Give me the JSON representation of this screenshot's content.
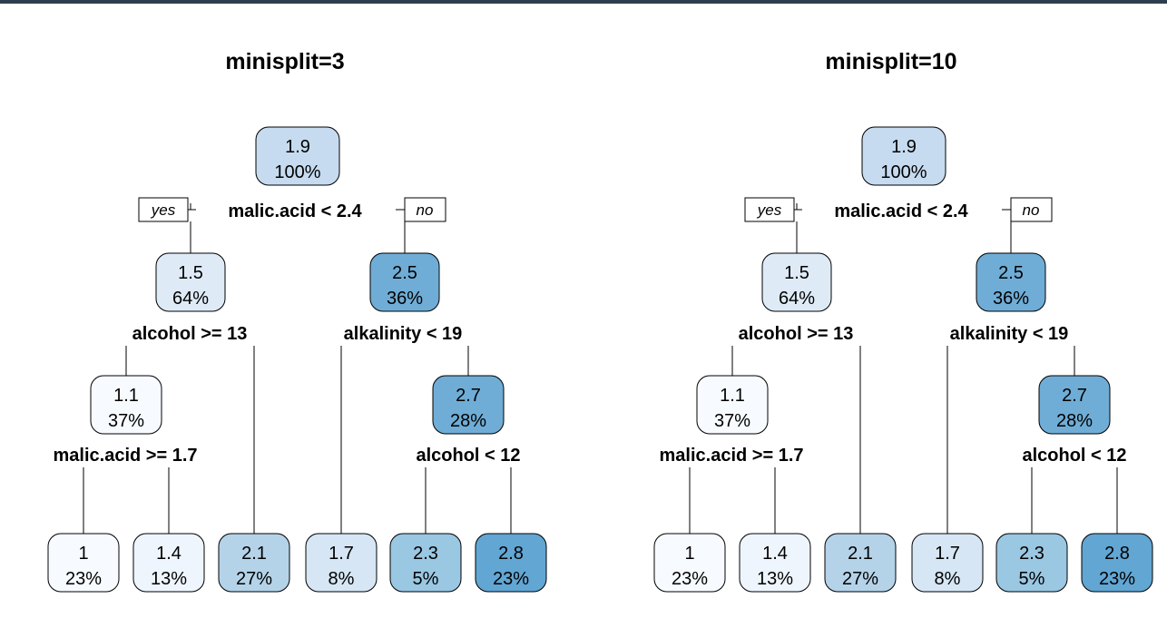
{
  "colors": {
    "frame": "#2f3e4e",
    "edge": "#000000",
    "node_border": "#000000"
  },
  "trees": [
    {
      "title": "minisplit=3",
      "yes_label": "yes",
      "no_label": "no",
      "root": {
        "value": "1.9",
        "pct": "100%",
        "fill": "#c6dbef",
        "split": "malic.acid < 2.4",
        "left": {
          "value": "1.5",
          "pct": "64%",
          "fill": "#deebf7",
          "split": "alcohol >= 13",
          "left": {
            "value": "1.1",
            "pct": "37%",
            "fill": "#f7fbff",
            "split": "malic.acid >= 1.7",
            "left": {
              "value": "1",
              "pct": "23%",
              "fill": "#f7fbff"
            },
            "right": {
              "value": "1.4",
              "pct": "13%",
              "fill": "#eef5fc"
            }
          },
          "right": {
            "value": "2.1",
            "pct": "27%",
            "fill": "#b4d3e9"
          }
        },
        "right": {
          "value": "2.5",
          "pct": "36%",
          "fill": "#6fadd6",
          "split": "alkalinity < 19",
          "left": {
            "value": "1.7",
            "pct": "8%",
            "fill": "#d6e6f4"
          },
          "right": {
            "value": "2.7",
            "pct": "28%",
            "fill": "#6fadd6",
            "split": "alcohol < 12",
            "left": {
              "value": "2.3",
              "pct": "5%",
              "fill": "#9ac7e2"
            },
            "right": {
              "value": "2.8",
              "pct": "23%",
              "fill": "#62a6d3"
            }
          }
        }
      }
    },
    {
      "title": "minisplit=10",
      "yes_label": "yes",
      "no_label": "no",
      "root": {
        "value": "1.9",
        "pct": "100%",
        "fill": "#c6dbef",
        "split": "malic.acid < 2.4",
        "left": {
          "value": "1.5",
          "pct": "64%",
          "fill": "#deebf7",
          "split": "alcohol >= 13",
          "left": {
            "value": "1.1",
            "pct": "37%",
            "fill": "#f7fbff",
            "split": "malic.acid >= 1.7",
            "left": {
              "value": "1",
              "pct": "23%",
              "fill": "#f7fbff"
            },
            "right": {
              "value": "1.4",
              "pct": "13%",
              "fill": "#eef5fc"
            }
          },
          "right": {
            "value": "2.1",
            "pct": "27%",
            "fill": "#b4d3e9"
          }
        },
        "right": {
          "value": "2.5",
          "pct": "36%",
          "fill": "#6fadd6",
          "split": "alkalinity < 19",
          "left": {
            "value": "1.7",
            "pct": "8%",
            "fill": "#d6e6f4"
          },
          "right": {
            "value": "2.7",
            "pct": "28%",
            "fill": "#6fadd6",
            "split": "alcohol < 12",
            "left": {
              "value": "2.3",
              "pct": "5%",
              "fill": "#9ac7e2"
            },
            "right": {
              "value": "2.8",
              "pct": "23%",
              "fill": "#62a6d3"
            }
          }
        }
      }
    }
  ]
}
